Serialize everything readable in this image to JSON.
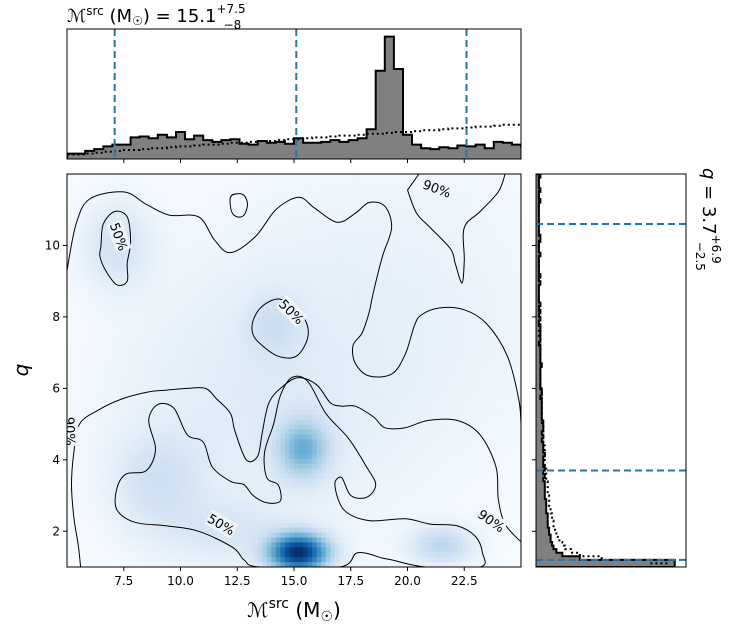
{
  "chart_data": [
    {
      "type": "histogram",
      "title": "ℳ^src (M☉) = 15.1^{+7.5}_{−8}",
      "title_parts": {
        "symbol": "ℳ",
        "sup": "src",
        "unit_open": " (M",
        "sun": "☉",
        "unit_close": ") = ",
        "median": "15.1",
        "plus": "+7.5",
        "minus": "−8"
      },
      "x_range": [
        5.0,
        25.0
      ],
      "bin_edges_start": 5.0,
      "bin_width": 0.4,
      "posterior_counts": [
        6,
        6,
        9,
        11,
        14,
        16,
        16,
        24,
        25,
        23,
        27,
        24,
        30,
        22,
        26,
        21,
        19,
        21,
        22,
        17,
        16,
        20,
        18,
        19,
        17,
        23,
        18,
        18,
        19,
        21,
        19,
        21,
        23,
        33,
        98,
        136,
        100,
        27,
        16,
        12,
        11,
        13,
        12,
        15,
        14,
        16,
        12,
        19,
        18,
        16,
        14,
        23,
        25,
        18,
        20,
        16,
        13,
        12,
        10,
        10,
        8,
        10,
        7,
        8,
        8,
        7,
        7,
        8,
        8,
        6,
        5
      ],
      "prior_counts": [
        5,
        5,
        6,
        7,
        8,
        9,
        10,
        10,
        11,
        12,
        12,
        13,
        14,
        14,
        15,
        16,
        16,
        17,
        18,
        18,
        19,
        20,
        20,
        21,
        22,
        22,
        23,
        24,
        24,
        25,
        26,
        26,
        27,
        28,
        28,
        29,
        30,
        30,
        31,
        32,
        32,
        33,
        34,
        34,
        35,
        36,
        36,
        37,
        38,
        38,
        39,
        40,
        40,
        41,
        42,
        42,
        43,
        44,
        44,
        45,
        46,
        46,
        47,
        48,
        48,
        49,
        50,
        50,
        51,
        52,
        52
      ],
      "count_max": 140,
      "quantiles": [
        7.1,
        15.1,
        22.6
      ],
      "posterior_color": "#808080",
      "quantile_color": "#1f77b4"
    },
    {
      "type": "histogram",
      "orientation": "horizontal",
      "title": "q = 3.7^{+6.9}_{−2.5}",
      "title_parts": {
        "symbol": "q",
        "eq": " = ",
        "median": "3.7",
        "plus": "+6.9",
        "minus": "−2.5"
      },
      "q_range": [
        1.0,
        12.0
      ],
      "bin_edges_start": 1.0,
      "bin_width": 0.1,
      "posterior_counts": [
        95,
        95,
        30,
        18,
        14,
        12,
        11,
        10,
        10,
        9,
        9,
        8,
        8,
        8,
        8,
        7,
        7,
        7,
        7,
        6,
        6,
        6,
        6,
        6,
        5,
        6,
        5,
        6,
        5,
        5,
        5,
        6,
        5,
        5,
        5,
        4,
        5,
        4,
        5,
        5,
        5,
        4,
        4,
        4,
        4,
        4,
        4,
        3,
        4,
        4,
        3,
        3,
        3,
        3,
        3,
        3,
        4,
        3,
        3,
        3,
        3,
        3,
        2,
        3,
        3,
        3,
        3,
        3,
        2,
        3,
        2,
        3,
        2,
        3,
        2,
        2,
        2,
        2,
        2,
        3,
        2,
        3,
        2,
        2,
        2,
        2,
        2,
        3,
        2,
        2,
        2,
        3,
        3,
        2,
        2,
        2,
        2,
        2,
        2,
        2,
        2,
        2,
        3,
        2,
        2,
        3,
        2,
        2,
        2,
        3
      ],
      "prior_counts": [
        90,
        78,
        45,
        30,
        24,
        20,
        18,
        16,
        15,
        14,
        13,
        12,
        12,
        11,
        11,
        10,
        10,
        9,
        9,
        9,
        8,
        8,
        8,
        8,
        7,
        7,
        7,
        7,
        6,
        6,
        6,
        6,
        6,
        6,
        5,
        5,
        5,
        5,
        5,
        5,
        4,
        4,
        4,
        4,
        4,
        4,
        4,
        4,
        4,
        3,
        3,
        3,
        3,
        3,
        3,
        3,
        3,
        3,
        3,
        3,
        3,
        3,
        3,
        3,
        2,
        2,
        2,
        2,
        2,
        2,
        2,
        2,
        2,
        2,
        2,
        2,
        2,
        2,
        2,
        2,
        2,
        2,
        2,
        2,
        2,
        2,
        2,
        2,
        2,
        2,
        2,
        2,
        2,
        2,
        2,
        2,
        2,
        2,
        2,
        2,
        2,
        2,
        2,
        2,
        2,
        2,
        2,
        2,
        2,
        2
      ],
      "count_max": 100,
      "quantiles": [
        1.2,
        3.7,
        10.6
      ]
    },
    {
      "type": "heatmap",
      "x_range": [
        5.0,
        25.0
      ],
      "y_range": [
        1.0,
        12.0
      ],
      "xlabel": "ℳ^src (M☉)",
      "xlabel_parts": {
        "symbol": "ℳ",
        "sup": "src",
        "unit_open": " (M",
        "sun": "☉",
        "unit_close": ")"
      },
      "ylabel": "q",
      "x_ticks": [
        7.5,
        10.0,
        12.5,
        15.0,
        17.5,
        20.0,
        22.5
      ],
      "x_tick_labels": [
        "7.5",
        "10.0",
        "12.5",
        "15.0",
        "17.5",
        "20.0",
        "22.5"
      ],
      "y_ticks": [
        2,
        4,
        6,
        8,
        10
      ],
      "y_tick_labels": [
        "2",
        "4",
        "6",
        "8",
        "10"
      ],
      "colormap": "Blues",
      "density_blobs": [
        {
          "x": 15.2,
          "y": 1.4,
          "sx": 0.85,
          "sy": 0.35,
          "w": 1.0
        },
        {
          "x": 15.4,
          "y": 4.3,
          "sx": 0.75,
          "sy": 0.55,
          "w": 0.38
        },
        {
          "x": 21.5,
          "y": 1.6,
          "sx": 0.9,
          "sy": 0.35,
          "w": 0.2
        },
        {
          "x": 9.0,
          "y": 3.4,
          "sx": 1.3,
          "sy": 0.9,
          "w": 0.12
        },
        {
          "x": 7.2,
          "y": 10.0,
          "sx": 1.0,
          "sy": 0.8,
          "w": 0.12
        },
        {
          "x": 14.1,
          "y": 7.8,
          "sx": 0.8,
          "sy": 0.6,
          "w": 0.1
        },
        {
          "x": 12.0,
          "y": 2.0,
          "sx": 2.0,
          "sy": 0.6,
          "w": 0.08
        },
        {
          "x": 13.0,
          "y": 5.5,
          "sx": 4.0,
          "sy": 2.5,
          "w": 0.06
        },
        {
          "x": 19.0,
          "y": 8.0,
          "sx": 5.0,
          "sy": 3.0,
          "w": 0.04
        }
      ],
      "contours": [
        {
          "label": "50%",
          "closed": true,
          "label_at": [
            11.8,
            2.2
          ],
          "label_angle": 30,
          "points": [
            [
              14.9,
              6.3
            ],
            [
              15.6,
              6.2
            ],
            [
              16.4,
              5.3
            ],
            [
              17.4,
              4.6
            ],
            [
              18.2,
              3.8
            ],
            [
              18.6,
              3.3
            ],
            [
              18.2,
              2.95
            ],
            [
              17.5,
              3.0
            ],
            [
              17.1,
              3.5
            ],
            [
              16.8,
              3.3
            ],
            [
              17.2,
              2.6
            ],
            [
              18.3,
              2.3
            ],
            [
              19.9,
              2.35
            ],
            [
              21.0,
              2.2
            ],
            [
              22.2,
              2.15
            ],
            [
              23.0,
              1.85
            ],
            [
              23.3,
              1.4
            ],
            [
              23.2,
              1.0
            ],
            [
              20.8,
              1.0
            ],
            [
              19.3,
              1.2
            ],
            [
              18.9,
              1.25
            ],
            [
              17.8,
              1.4
            ],
            [
              17.0,
              1.0
            ],
            [
              13.5,
              1.0
            ],
            [
              12.8,
              1.2
            ],
            [
              12.3,
              1.55
            ],
            [
              10.8,
              2.0
            ],
            [
              9.4,
              2.15
            ],
            [
              8.0,
              2.25
            ],
            [
              7.2,
              2.6
            ],
            [
              7.2,
              3.2
            ],
            [
              7.6,
              3.6
            ],
            [
              8.5,
              3.7
            ],
            [
              8.9,
              4.3
            ],
            [
              8.6,
              5.1
            ],
            [
              9.0,
              5.55
            ],
            [
              9.7,
              5.45
            ],
            [
              10.3,
              4.7
            ],
            [
              11.0,
              4.5
            ],
            [
              11.4,
              3.8
            ],
            [
              12.2,
              3.4
            ],
            [
              12.8,
              3.3
            ],
            [
              13.2,
              3.0
            ],
            [
              13.8,
              2.8
            ],
            [
              14.4,
              2.85
            ],
            [
              14.3,
              3.3
            ],
            [
              13.8,
              3.5
            ],
            [
              13.7,
              4.2
            ],
            [
              14.1,
              5.0
            ],
            [
              14.4,
              5.8
            ]
          ]
        },
        {
          "label": "50%",
          "closed": true,
          "label_at": [
            7.3,
            10.25
          ],
          "label_angle": 70,
          "points": [
            [
              6.5,
              10.0
            ],
            [
              6.6,
              10.6
            ],
            [
              7.1,
              10.95
            ],
            [
              7.65,
              10.8
            ],
            [
              7.8,
              10.1
            ],
            [
              7.65,
              9.5
            ],
            [
              7.65,
              9.0
            ],
            [
              7.2,
              8.9
            ],
            [
              6.7,
              9.3
            ],
            [
              6.45,
              9.7
            ]
          ]
        },
        {
          "label": "50%",
          "closed": true,
          "label_at": [
            14.9,
            8.15
          ],
          "label_angle": 45,
          "points": [
            [
              13.2,
              7.9
            ],
            [
              13.6,
              8.3
            ],
            [
              14.3,
              8.5
            ],
            [
              14.9,
              8.3
            ],
            [
              15.5,
              7.9
            ],
            [
              15.6,
              7.4
            ],
            [
              15.1,
              6.9
            ],
            [
              14.3,
              6.9
            ],
            [
              13.6,
              7.2
            ],
            [
              13.2,
              7.5
            ]
          ]
        },
        {
          "label": "",
          "closed": true,
          "points": [
            [
              12.2,
              11.35
            ],
            [
              12.5,
              11.45
            ],
            [
              12.8,
              11.4
            ],
            [
              12.95,
              11.15
            ],
            [
              12.8,
              10.85
            ],
            [
              12.5,
              10.8
            ],
            [
              12.25,
              10.95
            ]
          ]
        },
        {
          "label": "90%",
          "closed": false,
          "label_at": [
            5.15,
            4.8
          ],
          "label_angle": 88,
          "points": [
            [
              5.0,
              9.3
            ],
            [
              5.4,
              10.6
            ],
            [
              6.0,
              11.3
            ],
            [
              7.5,
              11.5
            ],
            [
              8.5,
              11.15
            ],
            [
              9.5,
              10.85
            ],
            [
              10.8,
              10.8
            ],
            [
              11.5,
              10.15
            ],
            [
              12.2,
              9.8
            ],
            [
              13.3,
              10.25
            ],
            [
              14.2,
              11.0
            ],
            [
              15.2,
              11.35
            ],
            [
              15.9,
              11.05
            ],
            [
              16.9,
              10.65
            ],
            [
              17.7,
              10.9
            ],
            [
              18.3,
              11.2
            ],
            [
              19.0,
              11.1
            ],
            [
              19.3,
              10.5
            ],
            [
              18.9,
              9.7
            ],
            [
              18.5,
              8.7
            ],
            [
              18.3,
              8.1
            ],
            [
              18.0,
              7.55
            ],
            [
              17.6,
              7.2
            ],
            [
              17.7,
              6.7
            ],
            [
              18.3,
              6.35
            ],
            [
              19.3,
              6.4
            ],
            [
              19.9,
              6.95
            ],
            [
              20.3,
              7.75
            ],
            [
              20.6,
              8.05
            ],
            [
              21.4,
              8.25
            ],
            [
              22.5,
              8.2
            ],
            [
              23.5,
              7.8
            ],
            [
              24.4,
              6.9
            ],
            [
              24.9,
              5.7
            ],
            [
              25.0,
              5.0
            ]
          ],
          "points_b": [
            [
              25.0,
              1.7
            ],
            [
              24.3,
              2.2
            ],
            [
              24.0,
              2.9
            ],
            [
              23.9,
              3.8
            ],
            [
              23.2,
              4.7
            ],
            [
              22.2,
              5.1
            ],
            [
              20.9,
              5.1
            ],
            [
              19.9,
              4.9
            ],
            [
              19.0,
              4.9
            ],
            [
              18.5,
              5.2
            ],
            [
              17.7,
              5.5
            ],
            [
              17.1,
              5.5
            ],
            [
              16.6,
              5.6
            ],
            [
              16.0,
              6.1
            ],
            [
              15.2,
              6.3
            ],
            [
              14.5,
              6.05
            ],
            [
              13.9,
              5.6
            ],
            [
              13.6,
              4.75
            ],
            [
              13.4,
              4.1
            ],
            [
              12.9,
              4.0
            ],
            [
              12.4,
              4.8
            ],
            [
              12.2,
              5.3
            ],
            [
              11.6,
              5.7
            ],
            [
              11.1,
              6.0
            ],
            [
              10.3,
              6.0
            ],
            [
              9.4,
              5.95
            ],
            [
              8.6,
              5.9
            ],
            [
              7.4,
              5.7
            ],
            [
              6.4,
              5.4
            ],
            [
              5.55,
              5.0
            ],
            [
              5.3,
              4.2
            ],
            [
              5.2,
              3.3
            ],
            [
              5.3,
              2.4
            ],
            [
              5.5,
              1.6
            ],
            [
              5.6,
              1.0
            ]
          ]
        },
        {
          "label": "90%",
          "closed": false,
          "label_at": [
            21.3,
            11.6
          ],
          "label_angle": 20,
          "points": [
            [
              20.0,
              11.55
            ],
            [
              20.4,
              10.9
            ],
            [
              21.0,
              10.5
            ],
            [
              21.9,
              9.9
            ],
            [
              22.1,
              9.5
            ],
            [
              22.4,
              8.95
            ],
            [
              22.5,
              9.6
            ],
            [
              22.5,
              10.5
            ],
            [
              23.2,
              10.95
            ],
            [
              24.0,
              11.5
            ],
            [
              24.3,
              12.0
            ]
          ],
          "points_b": [
            [
              20.0,
              11.55
            ],
            [
              20.5,
              12.0
            ]
          ]
        },
        {
          "label": "90%",
          "closed": false,
          "label_at": [
            23.7,
            2.3
          ],
          "label_angle": 35,
          "points": []
        }
      ]
    }
  ]
}
